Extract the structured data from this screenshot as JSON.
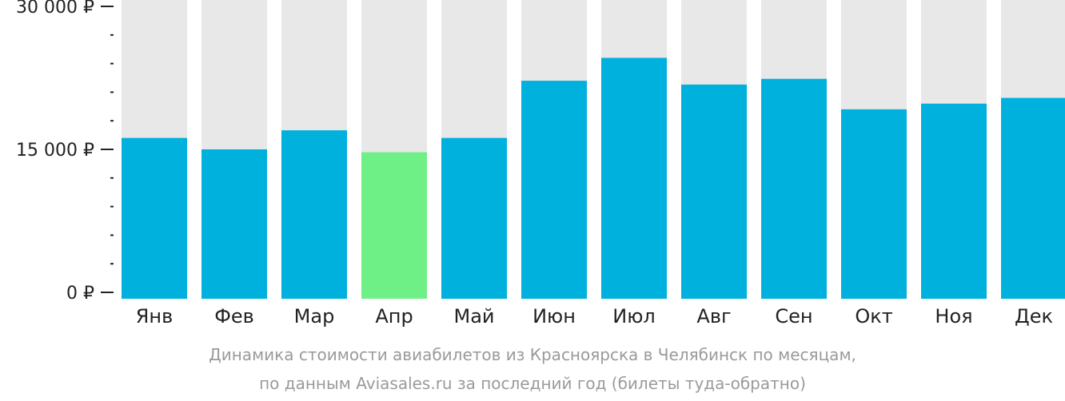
{
  "chart_data": {
    "type": "bar",
    "categories": [
      "Янв",
      "Фев",
      "Мар",
      "Апр",
      "Май",
      "Июн",
      "Июл",
      "Авг",
      "Сен",
      "Окт",
      "Ноя",
      "Дек"
    ],
    "values": [
      16200,
      15000,
      17000,
      14700,
      16200,
      22200,
      24600,
      21800,
      22400,
      19200,
      19800,
      20400
    ],
    "highlight_index": 3,
    "ylim": [
      0,
      30000
    ],
    "yticks": [
      {
        "value": 0,
        "label": "0 ₽"
      },
      {
        "value": 15000,
        "label": "15 000 ₽"
      },
      {
        "value": 30000,
        "label": "30 000 ₽"
      }
    ],
    "minor_tick_step": 3000,
    "grid": false,
    "colors": {
      "bar": "#00b0dd",
      "highlight": "#6ff086",
      "track": "#e8e8e8",
      "axis": "#222222"
    }
  },
  "caption": {
    "line1": "Динамика стоимости авиабилетов из Красноярска в Челябинск по месяцам,",
    "line2": "по данным Aviasales.ru за последний год (билеты туда-обратно)"
  }
}
